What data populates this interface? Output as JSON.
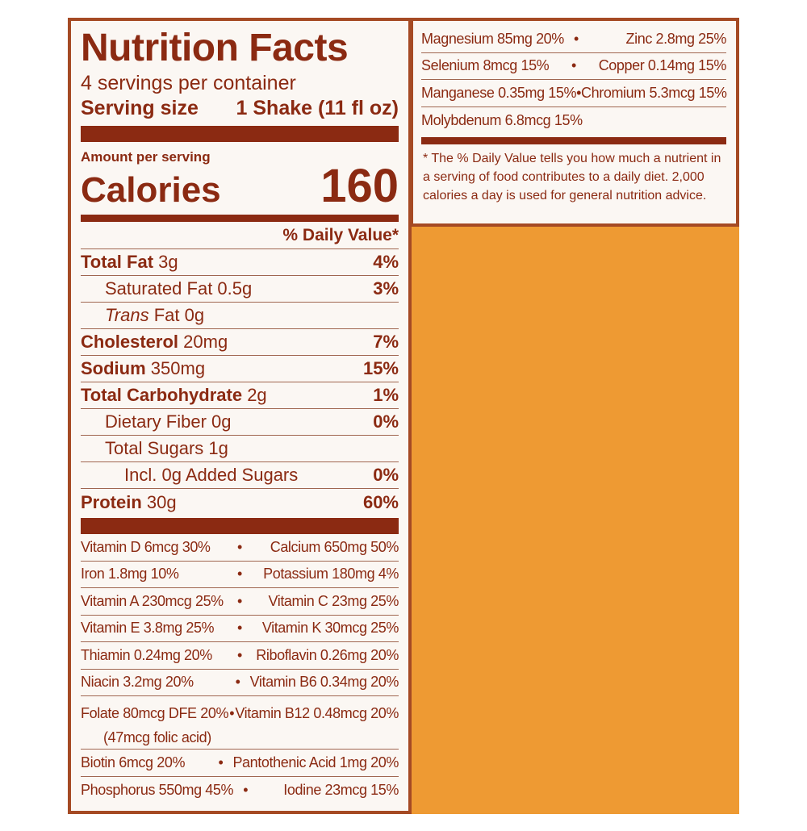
{
  "label": {
    "title": "Nutrition Facts",
    "servings": "4 servings per container",
    "serving_size_label": "Serving size",
    "serving_size_value": "1 Shake (11 fl oz)",
    "amount_per_serving": "Amount per serving",
    "calories_label": "Calories",
    "calories_value": "160",
    "dv_header": "% Daily Value*"
  },
  "nutrients": {
    "total_fat": {
      "name": "Total Fat",
      "amount": "3g",
      "dv": "4%"
    },
    "saturated_fat": {
      "name": "Saturated Fat 0.5g",
      "dv": "3%"
    },
    "trans_fat": {
      "name": "Trans",
      "amount": "Fat 0g"
    },
    "cholesterol": {
      "name": "Cholesterol",
      "amount": "20mg",
      "dv": "7%"
    },
    "sodium": {
      "name": "Sodium",
      "amount": "350mg",
      "dv": "15%"
    },
    "total_carb": {
      "name": "Total Carbohydrate",
      "amount": "2g",
      "dv": "1%"
    },
    "dietary_fiber": {
      "name": "Dietary Fiber 0g",
      "dv": "0%"
    },
    "total_sugars": {
      "name": "Total Sugars 1g"
    },
    "added_sugars": {
      "name": "Incl. 0g Added Sugars",
      "dv": "0%"
    },
    "protein": {
      "name": "Protein",
      "amount": "30g",
      "dv": "60%"
    }
  },
  "vitamins": [
    {
      "left": "Vitamin D 6mcg 30%",
      "right": "Calcium 650mg 50%"
    },
    {
      "left": "Iron 1.8mg 10%",
      "right": "Potassium 180mg 4%"
    },
    {
      "left": "Vitamin A 230mcg 25%",
      "right": "Vitamin C 23mg 25%"
    },
    {
      "left": "Vitamin E 3.8mg 25%",
      "right": "Vitamin K 30mcg 25%"
    },
    {
      "left": "Thiamin 0.24mg 20%",
      "right": "Riboflavin 0.26mg 20%"
    },
    {
      "left": "Niacin 3.2mg 20%",
      "right": "Vitamin B6 0.34mg 20%"
    },
    {
      "left": "Folate 80mcg DFE 20%",
      "left2": "(47mcg folic acid)",
      "right": "Vitamin B12 0.48mcg 20%"
    },
    {
      "left": "Biotin 6mcg 20%",
      "right": "Pantothenic Acid 1mg 20%"
    },
    {
      "left": "Phosphorus 550mg 45%",
      "right": "Iodine 23mcg 15%"
    }
  ],
  "minerals": [
    {
      "left": "Magnesium 85mg 20%",
      "right": "Zinc 2.8mg 25%"
    },
    {
      "left": "Selenium 8mcg 15%",
      "right": "Copper 0.14mg 15%"
    },
    {
      "left": "Manganese 0.35mg 15%",
      "right": "Chromium 5.3mcg 15%"
    },
    {
      "left": "Molybdenum 6.8mcg 15%",
      "right": ""
    }
  ],
  "separator": "•",
  "footnote": "* The % Daily Value tells you how much a nutrient in a serving of food contributes to a daily diet. 2,000 calories a day is used for general nutrition advice.",
  "colors": {
    "brand": "#8b2a12",
    "border": "#a54a24",
    "background": "#fbf7f3",
    "accent": "#ee9a33"
  }
}
